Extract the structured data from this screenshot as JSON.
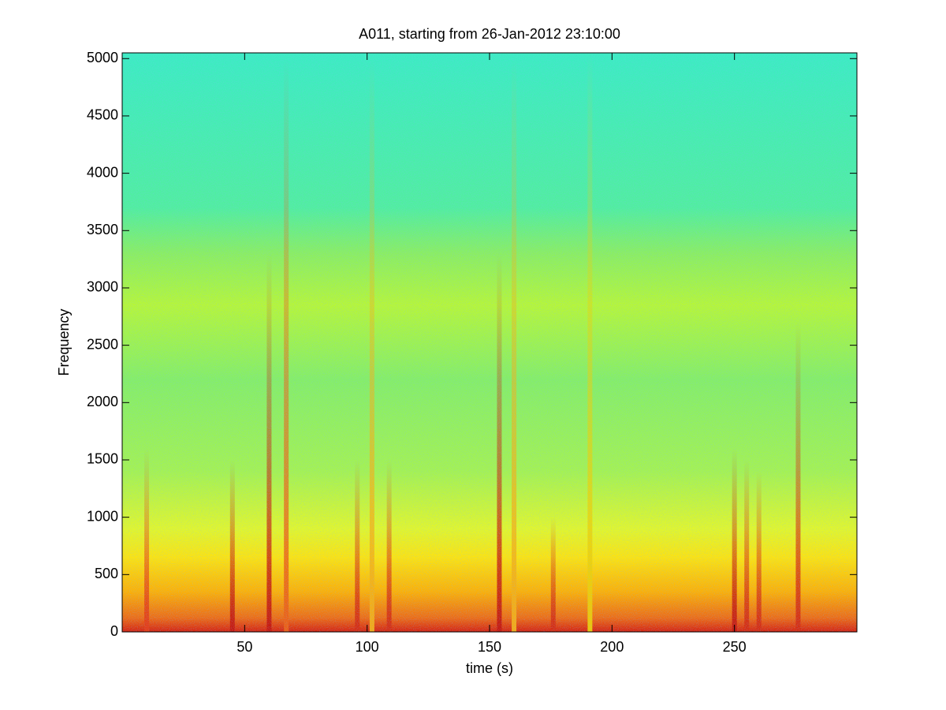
{
  "chart_data": {
    "type": "spectrogram",
    "title": "A011, starting from 26-Jan-2012 23:10:00",
    "x_label": "time (s)",
    "y_label": "Frequency",
    "xlim": [
      0,
      300
    ],
    "xticks": [
      50,
      100,
      150,
      200,
      250
    ],
    "ylim": [
      0,
      5050
    ],
    "yticks": [
      0,
      500,
      1000,
      1500,
      2000,
      2500,
      3000,
      3500,
      4000,
      4500,
      5000
    ],
    "background_bands": [
      {
        "frequency": 0,
        "color": "#d8200c"
      },
      {
        "frequency": 120,
        "color": "#f06a10"
      },
      {
        "frequency": 350,
        "color": "#ffb000"
      },
      {
        "frequency": 650,
        "color": "#ffe40a"
      },
      {
        "frequency": 900,
        "color": "#e4f826"
      },
      {
        "frequency": 1400,
        "color": "#a6f44c"
      },
      {
        "frequency": 2200,
        "color": "#86f062"
      },
      {
        "frequency": 2850,
        "color": "#b8f832"
      },
      {
        "frequency": 3300,
        "color": "#8cf05c"
      },
      {
        "frequency": 3700,
        "color": "#50f09c"
      },
      {
        "frequency": 5050,
        "color": "#3aeec0"
      }
    ],
    "events": [
      {
        "time": 10,
        "top_frequency": 1600,
        "color": "#e83a10"
      },
      {
        "time": 45,
        "top_frequency": 1500,
        "color": "#c81408"
      },
      {
        "time": 60,
        "top_frequency": 3300,
        "color": "#c81408"
      },
      {
        "time": 67,
        "top_frequency": 5000,
        "color": "#f06010"
      },
      {
        "time": 96,
        "top_frequency": 1500,
        "color": "#d82a0c"
      },
      {
        "time": 102,
        "top_frequency": 5000,
        "color": "#f8b010"
      },
      {
        "time": 109,
        "top_frequency": 1500,
        "color": "#d82a0c"
      },
      {
        "time": 154,
        "top_frequency": 3300,
        "color": "#c81408"
      },
      {
        "time": 160,
        "top_frequency": 5000,
        "color": "#f8b010"
      },
      {
        "time": 176,
        "top_frequency": 1000,
        "color": "#d82a0c"
      },
      {
        "time": 191,
        "top_frequency": 5050,
        "color": "#f0d000"
      },
      {
        "time": 250,
        "top_frequency": 1600,
        "color": "#c81408"
      },
      {
        "time": 255,
        "top_frequency": 1500,
        "color": "#d82a0c"
      },
      {
        "time": 260,
        "top_frequency": 1400,
        "color": "#d82a0c"
      },
      {
        "time": 276,
        "top_frequency": 2700,
        "color": "#d82a0c"
      }
    ]
  }
}
